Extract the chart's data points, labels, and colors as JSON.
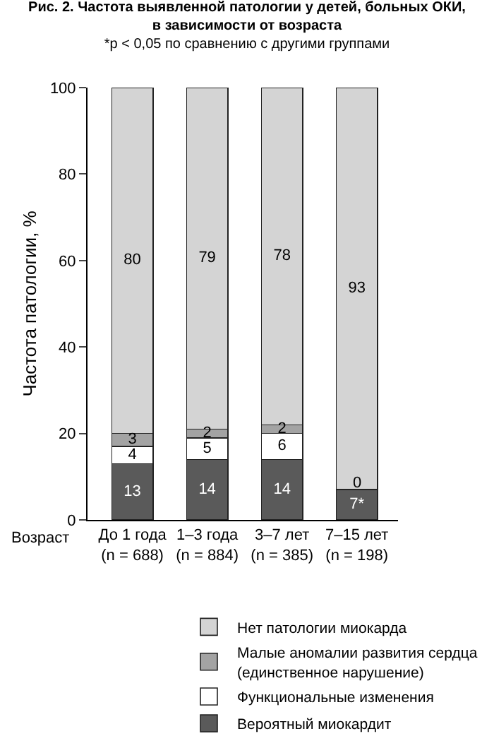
{
  "chart_data": {
    "type": "bar",
    "stacked": true,
    "title": "Рис. 2. Частота выявленной патологии у детей, больных ОКИ,\nв зависимости от возраста",
    "subtitle": "*p < 0,05 по сравнению с другими группами",
    "ylabel": "Частота патологии, %",
    "annotations": [
      "Возраст",
      {
        "text": "0",
        "x": "7–15 лет\n(n = 198)",
        "y": 8.6
      }
    ],
    "categories": [
      "До 1 года\n(n = 688)",
      "1–3 года\n(n = 884)",
      "3–7 лет\n(n = 385)",
      "7–15 лет\n(n = 198)"
    ],
    "ylim": [
      0,
      100
    ],
    "yticks": [
      0,
      20,
      40,
      60,
      80,
      100
    ],
    "grid": false,
    "legend": "bottom",
    "series": [
      {
        "name": "Вероятный миокардит",
        "color": "#5a5a5a",
        "values": [
          13,
          14,
          14,
          7
        ],
        "value_labels": [
          "13",
          "14",
          "14",
          "7*"
        ]
      },
      {
        "name": "Функциональные изменения",
        "color": "#ffffff",
        "values": [
          4,
          5,
          6,
          0
        ],
        "value_labels": [
          "4",
          "5",
          "6",
          null
        ]
      },
      {
        "name": "Малые аномалии развития сердца\n(единственное нарушение)",
        "color": "#a3a3a3",
        "values": [
          3,
          2,
          2,
          null
        ],
        "value_labels": [
          "3",
          "2",
          "2",
          null
        ]
      },
      {
        "name": "Нет патологии миокарда",
        "color": "#d4d4d4",
        "values": [
          80,
          79,
          78,
          93
        ],
        "value_labels": [
          "80",
          "79",
          "78",
          "93"
        ]
      }
    ]
  }
}
